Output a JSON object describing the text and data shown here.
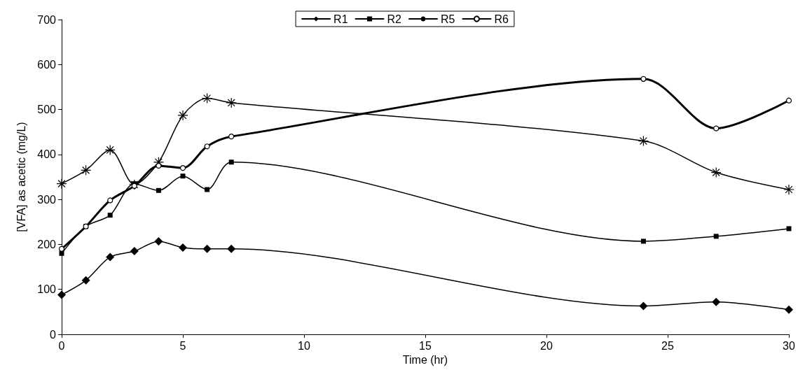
{
  "chart_data": {
    "type": "line",
    "xlabel": "Time (hr)",
    "ylabel": "[VFA] as acetic (mg/L)",
    "x": [
      0,
      1,
      2,
      3,
      4,
      5,
      6,
      7,
      24,
      27,
      30
    ],
    "series": [
      {
        "name": "R1",
        "color": "#000000",
        "marker": "diamond",
        "values": [
          88,
          120,
          172,
          185,
          207,
          193,
          190,
          190,
          63,
          72,
          55
        ]
      },
      {
        "name": "R2",
        "color": "#000000",
        "marker": "square",
        "values": [
          180,
          240,
          265,
          335,
          320,
          352,
          322,
          383,
          207,
          218,
          235
        ]
      },
      {
        "name": "R5",
        "color": "#000000",
        "marker": "cross",
        "values": [
          335,
          365,
          410,
          333,
          383,
          487,
          525,
          515,
          430,
          360,
          322
        ]
      },
      {
        "name": "R6",
        "color": "#000000",
        "marker": "circle",
        "values": [
          190,
          240,
          298,
          330,
          375,
          370,
          418,
          440,
          568,
          458,
          520
        ]
      }
    ],
    "xlim": [
      0,
      30
    ],
    "xticks": [
      0,
      5,
      10,
      15,
      20,
      25,
      30
    ],
    "ylim": [
      0,
      700
    ],
    "yticks": [
      0,
      100,
      200,
      300,
      400,
      500,
      600,
      700
    ],
    "grid": false,
    "legend": "top",
    "line_style": "solid"
  }
}
